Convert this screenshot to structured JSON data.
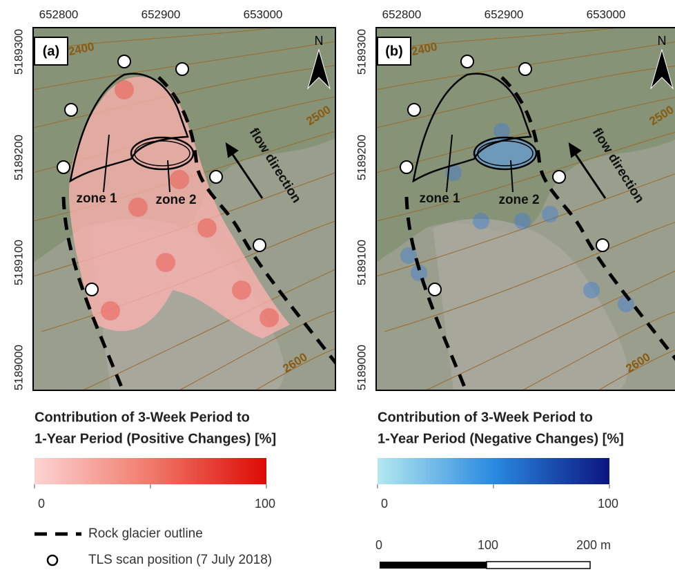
{
  "panels": [
    {
      "label": "(a)",
      "x_ticks": [
        652800,
        652900,
        653000
      ],
      "y_ticks": [
        5189300,
        5189200,
        5189100,
        5189000
      ],
      "north": "N",
      "contours": [
        2400,
        2500,
        2600
      ],
      "zones": [
        "zone 1",
        "zone 2"
      ],
      "flow": "flow direction",
      "legend_title": [
        "Contribution of 3-Week Period to",
        "1-Year Period (Positive Changes) [%]"
      ],
      "colorbar": {
        "min": 0,
        "max": 100
      }
    },
    {
      "label": "(b)",
      "x_ticks": [
        652800,
        652900,
        653000
      ],
      "y_ticks": [
        5189300,
        5189200,
        5189100,
        5189000
      ],
      "north": "N",
      "contours": [
        2400,
        2500,
        2600
      ],
      "zones": [
        "zone 1",
        "zone 2"
      ],
      "flow": "flow direction",
      "legend_title": [
        "Contribution of 3-Week Period to",
        "1-Year Period (Negative Changes) [%]"
      ],
      "colorbar": {
        "min": 0,
        "max": 100
      }
    }
  ],
  "legend": {
    "outline": "Rock glacier outline",
    "scan": "TLS scan position (7 July 2018)"
  },
  "scale_bar": {
    "labels": [
      0,
      100,
      "200 m"
    ]
  }
}
